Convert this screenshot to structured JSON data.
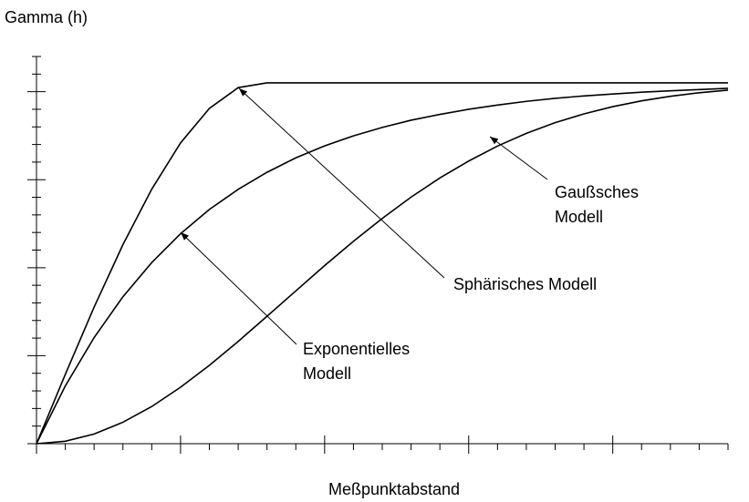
{
  "chart_data": {
    "type": "line",
    "ylabel": "Gamma (h)",
    "xlabel": "Meßpunktabstand",
    "x": [
      0,
      1,
      2,
      3,
      4,
      5,
      6,
      7,
      8,
      9,
      10,
      11,
      12,
      13,
      14,
      15,
      16,
      17,
      18,
      19,
      20,
      21,
      22,
      23,
      24
    ],
    "series": [
      {
        "color": "#000000",
        "values": [
          0,
          3.94,
          7.76,
          11.31,
          14.46,
          17.09,
          19.05,
          20.23,
          20.5,
          20.5,
          20.5,
          20.5,
          20.5,
          20.5,
          20.5,
          20.5,
          20.5,
          20.5,
          20.5,
          20.5,
          20.5,
          20.5,
          20.5,
          20.5,
          20.5
        ]
      },
      {
        "color": "#000000",
        "values": [
          0,
          3.28,
          6.03,
          8.35,
          10.29,
          11.93,
          13.31,
          14.45,
          15.42,
          16.24,
          16.92,
          17.49,
          17.97,
          18.38,
          18.71,
          19.0,
          19.24,
          19.45,
          19.62,
          19.76,
          19.87,
          19.97,
          20.05,
          20.12,
          20.19
        ]
      },
      {
        "color": "#000000",
        "values": [
          0,
          0.14,
          0.55,
          1.22,
          2.11,
          3.21,
          4.45,
          5.81,
          7.24,
          8.68,
          10.12,
          11.5,
          12.8,
          14.01,
          15.1,
          16.06,
          16.91,
          17.63,
          18.24,
          18.74,
          19.15,
          19.48,
          19.74,
          19.94,
          20.09
        ]
      }
    ],
    "annotations": [
      {
        "lines": [
          "Gaußsches",
          "Modell"
        ]
      },
      {
        "lines": [
          "Sphärisches Modell"
        ]
      },
      {
        "lines": [
          "Exponentielles",
          "Modell"
        ]
      }
    ],
    "xlim": [
      0,
      24
    ],
    "ylim": [
      0,
      22
    ],
    "xticks": [
      0,
      1,
      2,
      3,
      4,
      5,
      6,
      7,
      8,
      9,
      10,
      11,
      12,
      13,
      14,
      15,
      16,
      17,
      18,
      19,
      20,
      21,
      22,
      23,
      24
    ],
    "yticks": [
      0,
      1,
      2,
      3,
      4,
      5,
      6,
      7,
      8,
      9,
      10,
      11,
      12,
      13,
      14,
      15,
      16,
      17,
      18,
      19,
      20,
      21,
      22
    ],
    "grid": false
  }
}
